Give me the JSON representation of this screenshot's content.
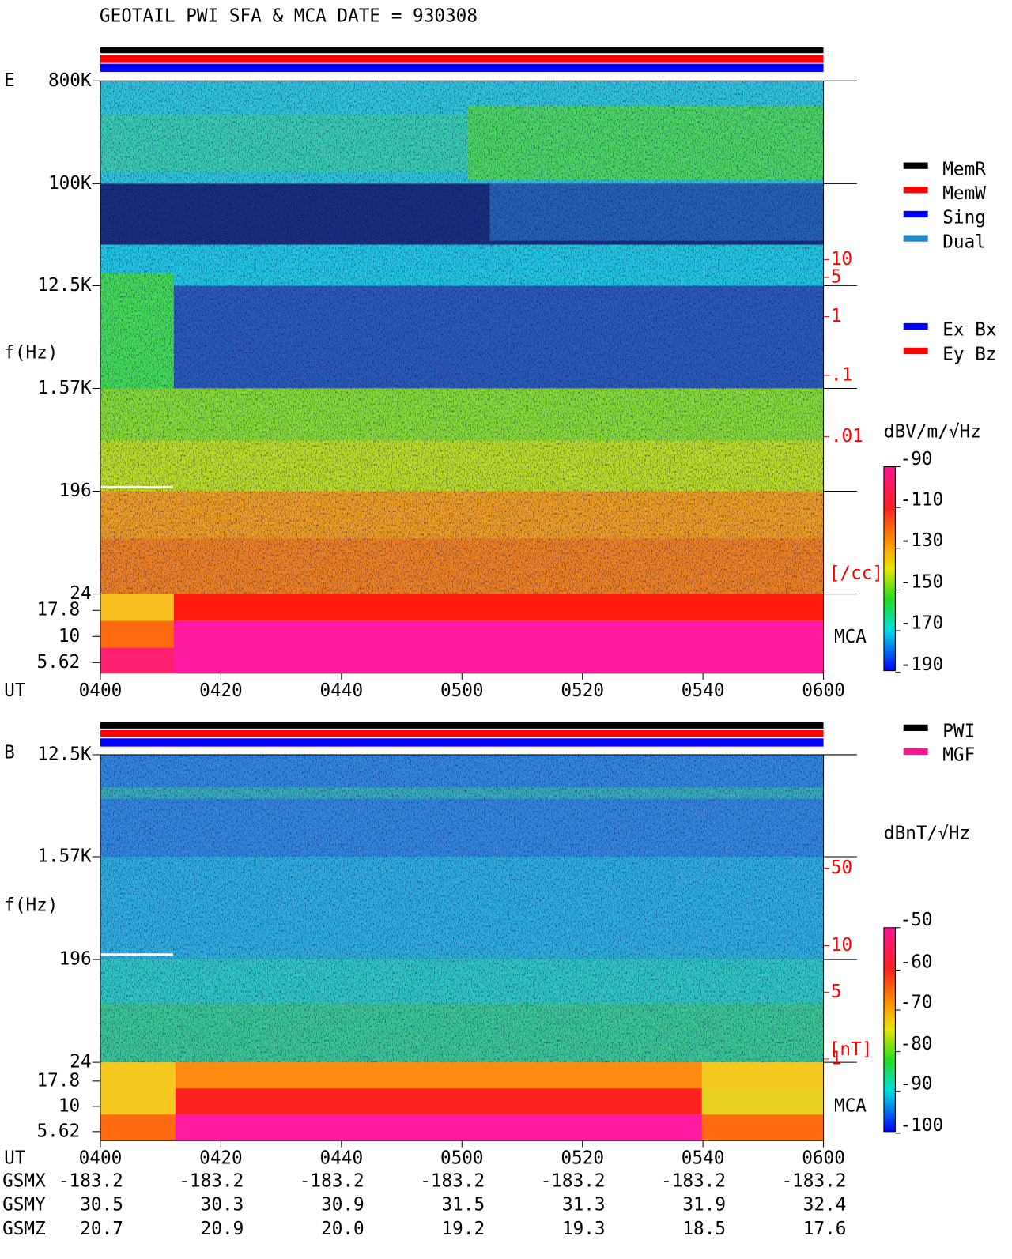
{
  "title": "GEOTAIL  PWI SFA & MCA   DATE = 930308",
  "legend": {
    "status": [
      {
        "name": "MemR",
        "color": "#000000"
      },
      {
        "name": "MemW",
        "color": "#ff0000"
      },
      {
        "name": "Sing",
        "color": "#0000ff"
      },
      {
        "name": "Dual",
        "color": "#1e8ac8"
      }
    ],
    "components": [
      {
        "name": "Ex Bx",
        "color": "#0000ff"
      },
      {
        "name": "Ey Bz",
        "color": "#ff0000"
      }
    ],
    "instruments": [
      {
        "name": "PWI",
        "color": "#000000"
      },
      {
        "name": "MGF",
        "color": "#ff1493"
      }
    ]
  },
  "panels": [
    {
      "label": "E",
      "y_axis_label": "f(Hz)",
      "freq_ticks": [
        "800K",
        "100K",
        "12.5K",
        "1.57K",
        "196",
        "24"
      ],
      "mca_ticks": [
        "17.8",
        "10",
        "5.62"
      ],
      "mca_label": "MCA",
      "x_axis_label": "UT",
      "x_ticks": [
        "0400",
        "0420",
        "0440",
        "0500",
        "0520",
        "0540",
        "0600"
      ],
      "side_scale": {
        "ticks": [
          "10",
          "5",
          "1",
          ".1",
          ".01"
        ],
        "unit": "[/cc]"
      },
      "colorbar": {
        "unit": "dBV/m/√Hz",
        "ticks": [
          "-90",
          "-110",
          "-130",
          "-150",
          "-170",
          "-190"
        ]
      }
    },
    {
      "label": "B",
      "y_axis_label": "f(Hz)",
      "freq_ticks": [
        "12.5K",
        "1.57K",
        "196",
        "24"
      ],
      "mca_ticks": [
        "17.8",
        "10",
        "5.62"
      ],
      "mca_label": "MCA",
      "x_axis_label": "UT",
      "x_ticks": [
        "0400",
        "0420",
        "0440",
        "0500",
        "0520",
        "0540",
        "0600"
      ],
      "side_scale": {
        "ticks": [
          "50",
          "10",
          "5",
          "1"
        ],
        "unit": "[nT]"
      },
      "colorbar": {
        "unit": "dBnT/√Hz",
        "ticks": [
          "-50",
          "-60",
          "-70",
          "-80",
          "-90",
          "-100"
        ]
      }
    }
  ],
  "orbit": {
    "rows": [
      {
        "label": "GSMX",
        "values": [
          "-183.2",
          "-183.2",
          "-183.2",
          "-183.2",
          "-183.2",
          "-183.2",
          "-183.2"
        ]
      },
      {
        "label": "GSMY",
        "values": [
          "30.5",
          "30.3",
          "30.9",
          "31.5",
          "31.3",
          "31.9",
          "32.4"
        ]
      },
      {
        "label": "GSMZ",
        "values": [
          "20.7",
          "20.9",
          "20.0",
          "19.2",
          "19.3",
          "18.5",
          "17.6"
        ]
      }
    ]
  }
}
